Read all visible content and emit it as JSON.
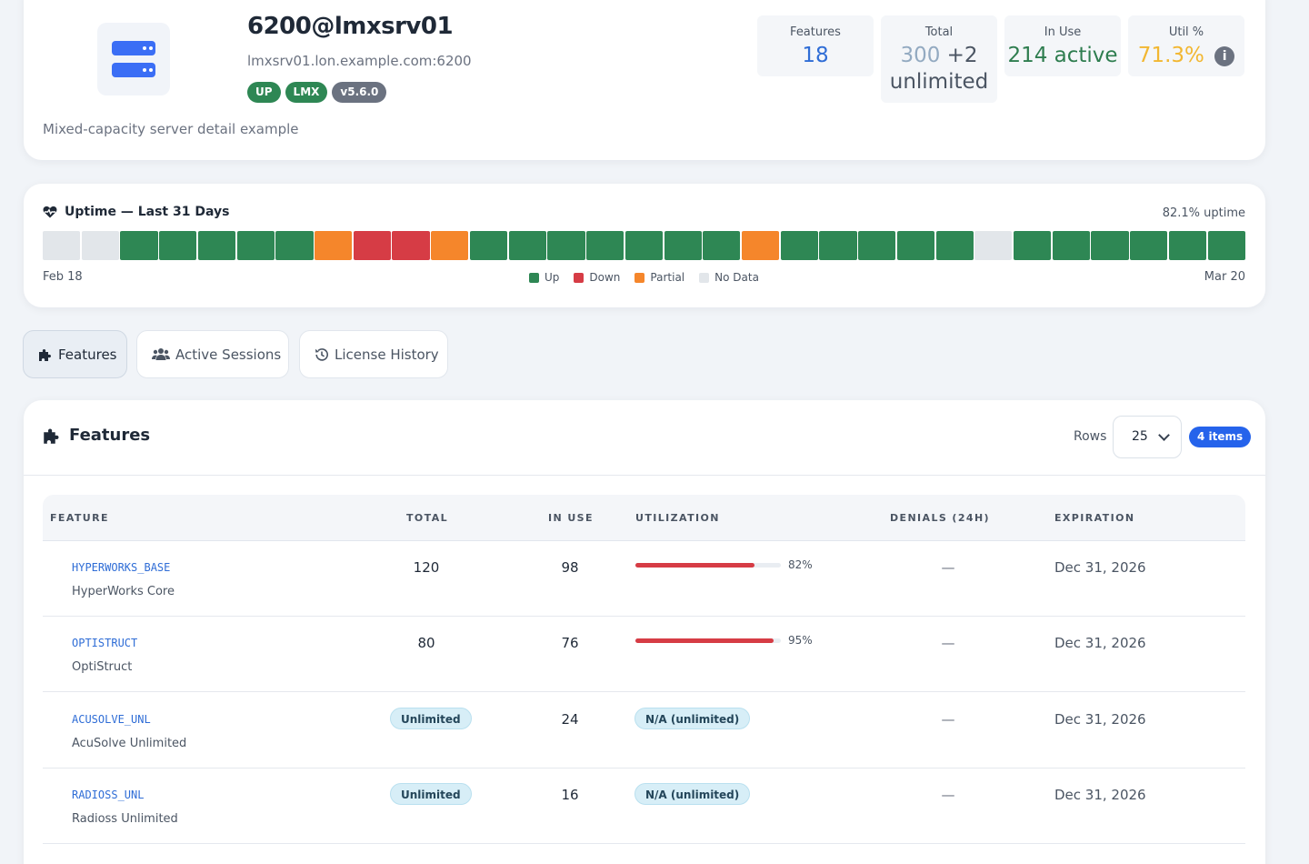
{
  "server": {
    "title": "6200@lmxsrv01",
    "host": "lmxsrv01.lon.example.com:6200",
    "badges": [
      "UP",
      "LMX",
      "v5.6.0"
    ],
    "description": "Mixed-capacity server detail example",
    "icon": "server-icon",
    "stats": {
      "features": {
        "label": "Features",
        "value": "18"
      },
      "total": {
        "label": "Total",
        "value_main": "300",
        "value_suffix": "+2",
        "value_line2": "unlimited"
      },
      "in_use": {
        "label": "In Use",
        "value": "214 active"
      },
      "util": {
        "label": "Util %",
        "value": "71.3%",
        "info_glyph": "i"
      }
    },
    "colors": {
      "features_value": "#2f6dd6",
      "total_main": "#93aac1",
      "in_use_value": "#2e7d4f",
      "util_value": "#f2b731"
    }
  },
  "uptime": {
    "title": "Uptime — Last 31 Days",
    "percent_text": "82.1% uptime",
    "start_label": "Feb 18",
    "end_label": "Mar 20",
    "days": [
      "nodata",
      "nodata",
      "up",
      "up",
      "up",
      "up",
      "up",
      "partial",
      "down",
      "down",
      "partial",
      "up",
      "up",
      "up",
      "up",
      "up",
      "up",
      "up",
      "partial",
      "up",
      "up",
      "up",
      "up",
      "up",
      "nodata",
      "up",
      "up",
      "up",
      "up",
      "up",
      "up"
    ],
    "legend": [
      {
        "key": "up",
        "label": "Up"
      },
      {
        "key": "down",
        "label": "Down"
      },
      {
        "key": "partial",
        "label": "Partial"
      },
      {
        "key": "nodata",
        "label": "No Data"
      }
    ],
    "status_colors": {
      "up": "#2e8754",
      "down": "#d63c45",
      "partial": "#f5862b",
      "nodata": "#e2e6ea"
    }
  },
  "tabs": [
    {
      "label": "Features",
      "icon": "puzzle-icon",
      "active": true
    },
    {
      "label": "Active Sessions",
      "icon": "users-icon",
      "active": false
    },
    {
      "label": "License History",
      "icon": "history-icon",
      "active": false
    }
  ],
  "features_table": {
    "title": "Features",
    "rows_label": "Rows",
    "rows_value": "25",
    "items_badge": "4 items",
    "columns": [
      "FEATURE",
      "TOTAL",
      "IN USE",
      "UTILIZATION",
      "DENIALS (24H)",
      "EXPIRATION"
    ],
    "rows": [
      {
        "code": "HYPERWORKS_BASE",
        "name": "HyperWorks Core",
        "total": "120",
        "total_unlimited": false,
        "in_use": "98",
        "util_pct": 82,
        "util_text": "82%",
        "denials": "—",
        "expiration": "Dec 31, 2026"
      },
      {
        "code": "OPTISTRUCT",
        "name": "OptiStruct",
        "total": "80",
        "total_unlimited": false,
        "in_use": "76",
        "util_pct": 95,
        "util_text": "95%",
        "denials": "—",
        "expiration": "Dec 31, 2026"
      },
      {
        "code": "ACUSOLVE_UNL",
        "name": "AcuSolve Unlimited",
        "total": "Unlimited",
        "total_unlimited": true,
        "in_use": "24",
        "util_pct": null,
        "util_text": "N/A (unlimited)",
        "denials": "—",
        "expiration": "Dec 31, 2026"
      },
      {
        "code": "RADIOSS_UNL",
        "name": "Radioss Unlimited",
        "total": "Unlimited",
        "total_unlimited": true,
        "in_use": "16",
        "util_pct": null,
        "util_text": "N/A (unlimited)",
        "denials": "—",
        "expiration": "Dec 31, 2026"
      }
    ]
  }
}
